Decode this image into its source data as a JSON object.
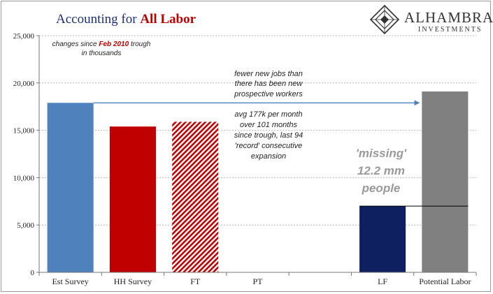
{
  "title": {
    "prefix": "Accounting for ",
    "emphasis": "All Labor",
    "prefix_color": "#1f2f7a",
    "emphasis_color": "#c00000"
  },
  "logo": {
    "name": "ALHAMBRA",
    "sub": "INVESTMENTS",
    "icon": "diamond-emblem-icon"
  },
  "notes": {
    "top_left_1_pre": "changes since ",
    "top_left_1_em": "Feb 2010",
    "top_left_1_post": " trough",
    "top_left_2": "in thousands",
    "arrow_1": "fewer new jobs than",
    "arrow_2": "there has been new",
    "arrow_3": "prospective workers",
    "avg_1": "avg 177k per month",
    "avg_2": "over 101 months",
    "avg_3": "since trough, last 94",
    "avg_4": "'record' consecutive",
    "avg_5": "expansion",
    "missing_1": "'missing'",
    "missing_2": "12.2 mm",
    "missing_3": "people"
  },
  "chart_data": {
    "type": "bar",
    "categories": [
      "Est Survey",
      "HH Survey",
      "FT",
      "PT",
      "",
      "LF",
      "Potential Labor"
    ],
    "values": [
      17900,
      15400,
      15900,
      null,
      null,
      7000,
      19100
    ],
    "colors": [
      "#4f81bd",
      "#c00000",
      "#c00000",
      null,
      null,
      "#0f2060",
      "#808080"
    ],
    "patterns": [
      "solid",
      "solid",
      "hatched",
      null,
      null,
      "solid",
      "solid"
    ],
    "ylim": [
      0,
      25000
    ],
    "yticks": [
      "0",
      "5,000",
      "10,000",
      "15,000",
      "20,000",
      "25,000"
    ],
    "ytick_values": [
      0,
      5000,
      10000,
      15000,
      20000,
      25000
    ],
    "grid": true,
    "reference_line_value": 7000,
    "arrow_value": 17900
  }
}
